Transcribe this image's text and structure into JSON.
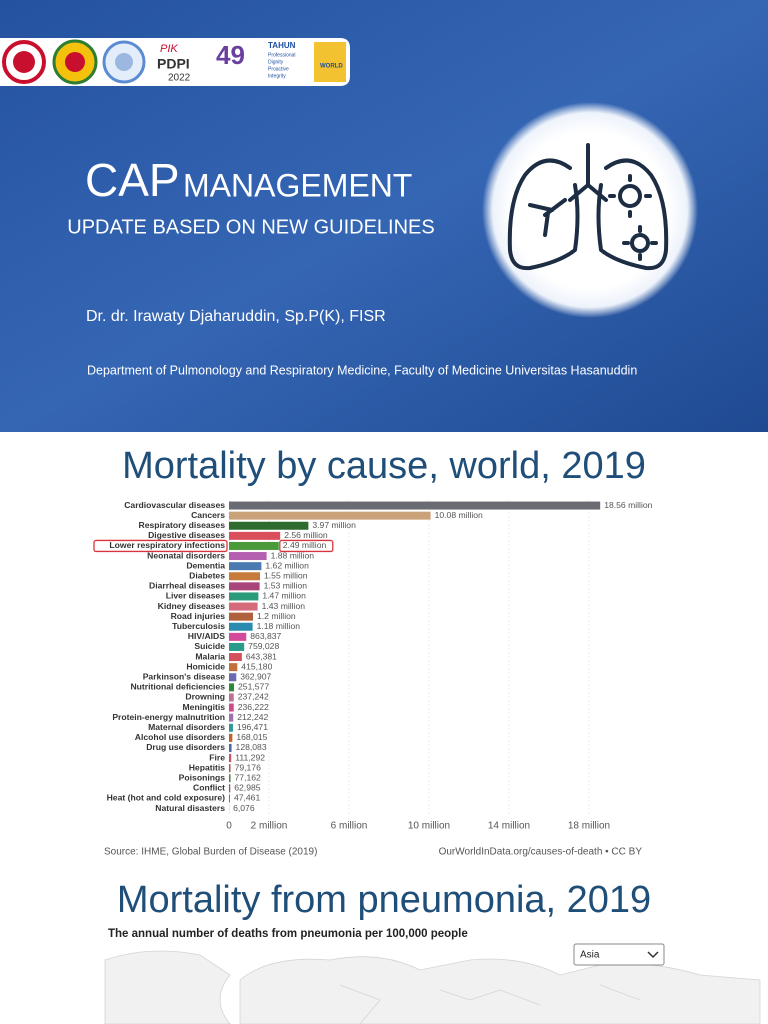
{
  "header": {
    "logo_texts": [
      "PIK",
      "PDPI",
      "2022",
      "49",
      "TAHUN",
      "Professional",
      "Dignity",
      "Proactive",
      "Integrity",
      "WORLD"
    ]
  },
  "title_slide": {
    "title_main": "CAP",
    "title_rest": "MANAGEMENT",
    "subtitle": "UPDATE BASED ON NEW GUIDELINES",
    "author": "Dr. dr. Irawaty Djaharuddin, Sp.P(K), FISR",
    "department": "Department of Pulmonology and Respiratory Medicine, Faculty of Medicine Universitas Hasanuddin"
  },
  "slide2": {
    "title": "Mortality by cause, world, 2019",
    "chart": {
      "type": "bar",
      "orientation": "horizontal",
      "categories": [
        "Cardiovascular diseases",
        "Cancers",
        "Respiratory diseases",
        "Digestive diseases",
        "Lower respiratory infections",
        "Neonatal disorders",
        "Dementia",
        "Diabetes",
        "Diarrheal diseases",
        "Liver diseases",
        "Kidney diseases",
        "Road injuries",
        "Tuberculosis",
        "HIV/AIDS",
        "Suicide",
        "Malaria",
        "Homicide",
        "Parkinson's disease",
        "Nutritional deficiencies",
        "Drowning",
        "Meningitis",
        "Protein-energy malnutrition",
        "Maternal disorders",
        "Alcohol use disorders",
        "Drug use disorders",
        "Fire",
        "Hepatitis",
        "Poisonings",
        "Conflict",
        "Heat (hot and cold exposure)",
        "Natural disasters"
      ],
      "values": [
        18560000,
        10080000,
        3970000,
        2560000,
        2490000,
        1880000,
        1620000,
        1550000,
        1530000,
        1470000,
        1430000,
        1200000,
        1180000,
        863837,
        759028,
        643381,
        415180,
        362907,
        251577,
        237242,
        236222,
        212242,
        196471,
        168015,
        128083,
        111292,
        79176,
        77162,
        62985,
        47461,
        6076
      ],
      "value_labels": [
        "18.56 million",
        "10.08 million",
        "3.97 million",
        "2.56 million",
        "2.49 million",
        "1.88 million",
        "1.62 million",
        "1.55 million",
        "1.53 million",
        "1.47 million",
        "1.43 million",
        "1.2 million",
        "1.18 million",
        "863,837",
        "759,028",
        "643,381",
        "415,180",
        "362,907",
        "251,577",
        "237,242",
        "236,222",
        "212,242",
        "196,471",
        "168,015",
        "128,083",
        "111,292",
        "79,176",
        "77,162",
        "62,985",
        "47,461",
        "6,076"
      ],
      "colors": [
        "#6b6b74",
        "#c9a27a",
        "#2e6b2e",
        "#d94f5c",
        "#4a9a3a",
        "#b45fb0",
        "#4a7ab0",
        "#c77b3a",
        "#a8457a",
        "#2a9a7a",
        "#d46a7a",
        "#b0603a",
        "#2a8ab0",
        "#d44a9a",
        "#2a9a8a",
        "#d4505a",
        "#c0703a",
        "#6a6ab0",
        "#2a8a3a",
        "#c07090",
        "#d04a8a",
        "#a070b0",
        "#2a9a9a",
        "#c0602a",
        "#4a6aa0",
        "#d05060",
        "#a06a3a",
        "#4a8a3a",
        "#a04a4a",
        "#6a6aa0",
        "#3a8a8a"
      ],
      "xlim": [
        0,
        20000000
      ],
      "xticks": [
        0,
        {
          "value": 2000000,
          "label": "2 million"
        },
        {
          "value": 6000000,
          "label": "6 million"
        },
        {
          "value": 10000000,
          "label": "10 million"
        },
        {
          "value": 14000000,
          "label": "14 million"
        },
        {
          "value": 18000000,
          "label": "18 million"
        }
      ],
      "grid": true,
      "highlight_index": 4,
      "source": "Source: IHME, Global Burden of Disease (2019)",
      "credit": "OurWorldInData.org/causes-of-death • CC BY"
    }
  },
  "slide3": {
    "title": "Mortality from pneumonia, 2019",
    "subtitle": "The annual number of deaths from pneumonia per 100,000 people",
    "region_selector": "Asia"
  }
}
